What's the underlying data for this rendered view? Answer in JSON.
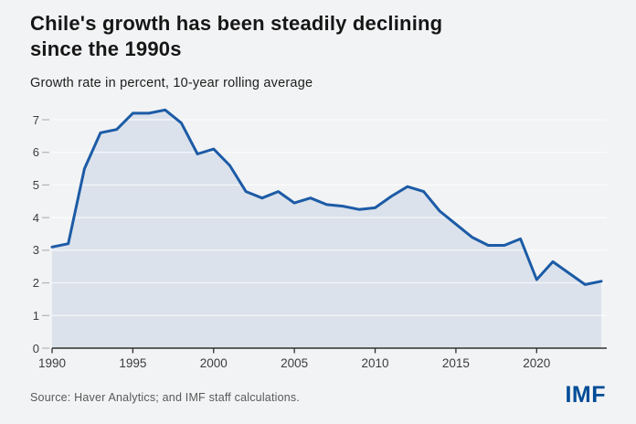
{
  "header": {
    "title": "Chile's growth has been steadily declining\nsince the 1990s",
    "subtitle": "Growth rate in percent, 10-year rolling average"
  },
  "footer": {
    "source": "Source: Haver Analytics; and IMF staff calculations.",
    "logo": "IMF"
  },
  "colors": {
    "background": "#f2f3f4",
    "title_text": "#161616",
    "subtitle_text": "#1d1d1d",
    "line": "#1c5ba6",
    "area_fill": "#dbe2ec",
    "gridline": "#ffffff",
    "tick": "#b4b4b4",
    "axis": "#2f2f2f",
    "axis_label": "#3c3c3c",
    "source_text": "#595959",
    "logo_blue": "#004c97"
  },
  "chart_data": {
    "type": "area",
    "title": "Chile's growth has been steadily declining since the 1990s",
    "subtitle": "Growth rate in percent, 10-year rolling average",
    "xlabel": "",
    "ylabel": "Growth rate in percent",
    "x": [
      1990,
      1991,
      1992,
      1993,
      1994,
      1995,
      1996,
      1997,
      1998,
      1999,
      2000,
      2001,
      2002,
      2003,
      2004,
      2005,
      2006,
      2007,
      2008,
      2009,
      2010,
      2011,
      2012,
      2013,
      2014,
      2015,
      2016,
      2017,
      2018,
      2019,
      2020,
      2021,
      2022,
      2023,
      2024
    ],
    "values": [
      3.1,
      3.2,
      5.5,
      6.6,
      6.7,
      7.2,
      7.2,
      7.3,
      6.9,
      5.95,
      6.1,
      5.6,
      4.8,
      4.6,
      4.8,
      4.45,
      4.6,
      4.4,
      4.35,
      4.25,
      4.3,
      4.65,
      4.95,
      4.8,
      4.2,
      3.8,
      3.4,
      3.15,
      3.15,
      3.35,
      2.1,
      2.65,
      2.3,
      1.95,
      2.05
    ],
    "xlim": [
      1990,
      2024
    ],
    "ylim": [
      0,
      7.4
    ],
    "xticks": [
      1990,
      1995,
      2000,
      2005,
      2010,
      2015,
      2020
    ],
    "yticks": [
      0,
      1,
      2,
      3,
      4,
      5,
      6,
      7
    ],
    "grid": "horizontal",
    "legend": "none",
    "series_name": "Chile 10-year rolling average growth rate"
  }
}
